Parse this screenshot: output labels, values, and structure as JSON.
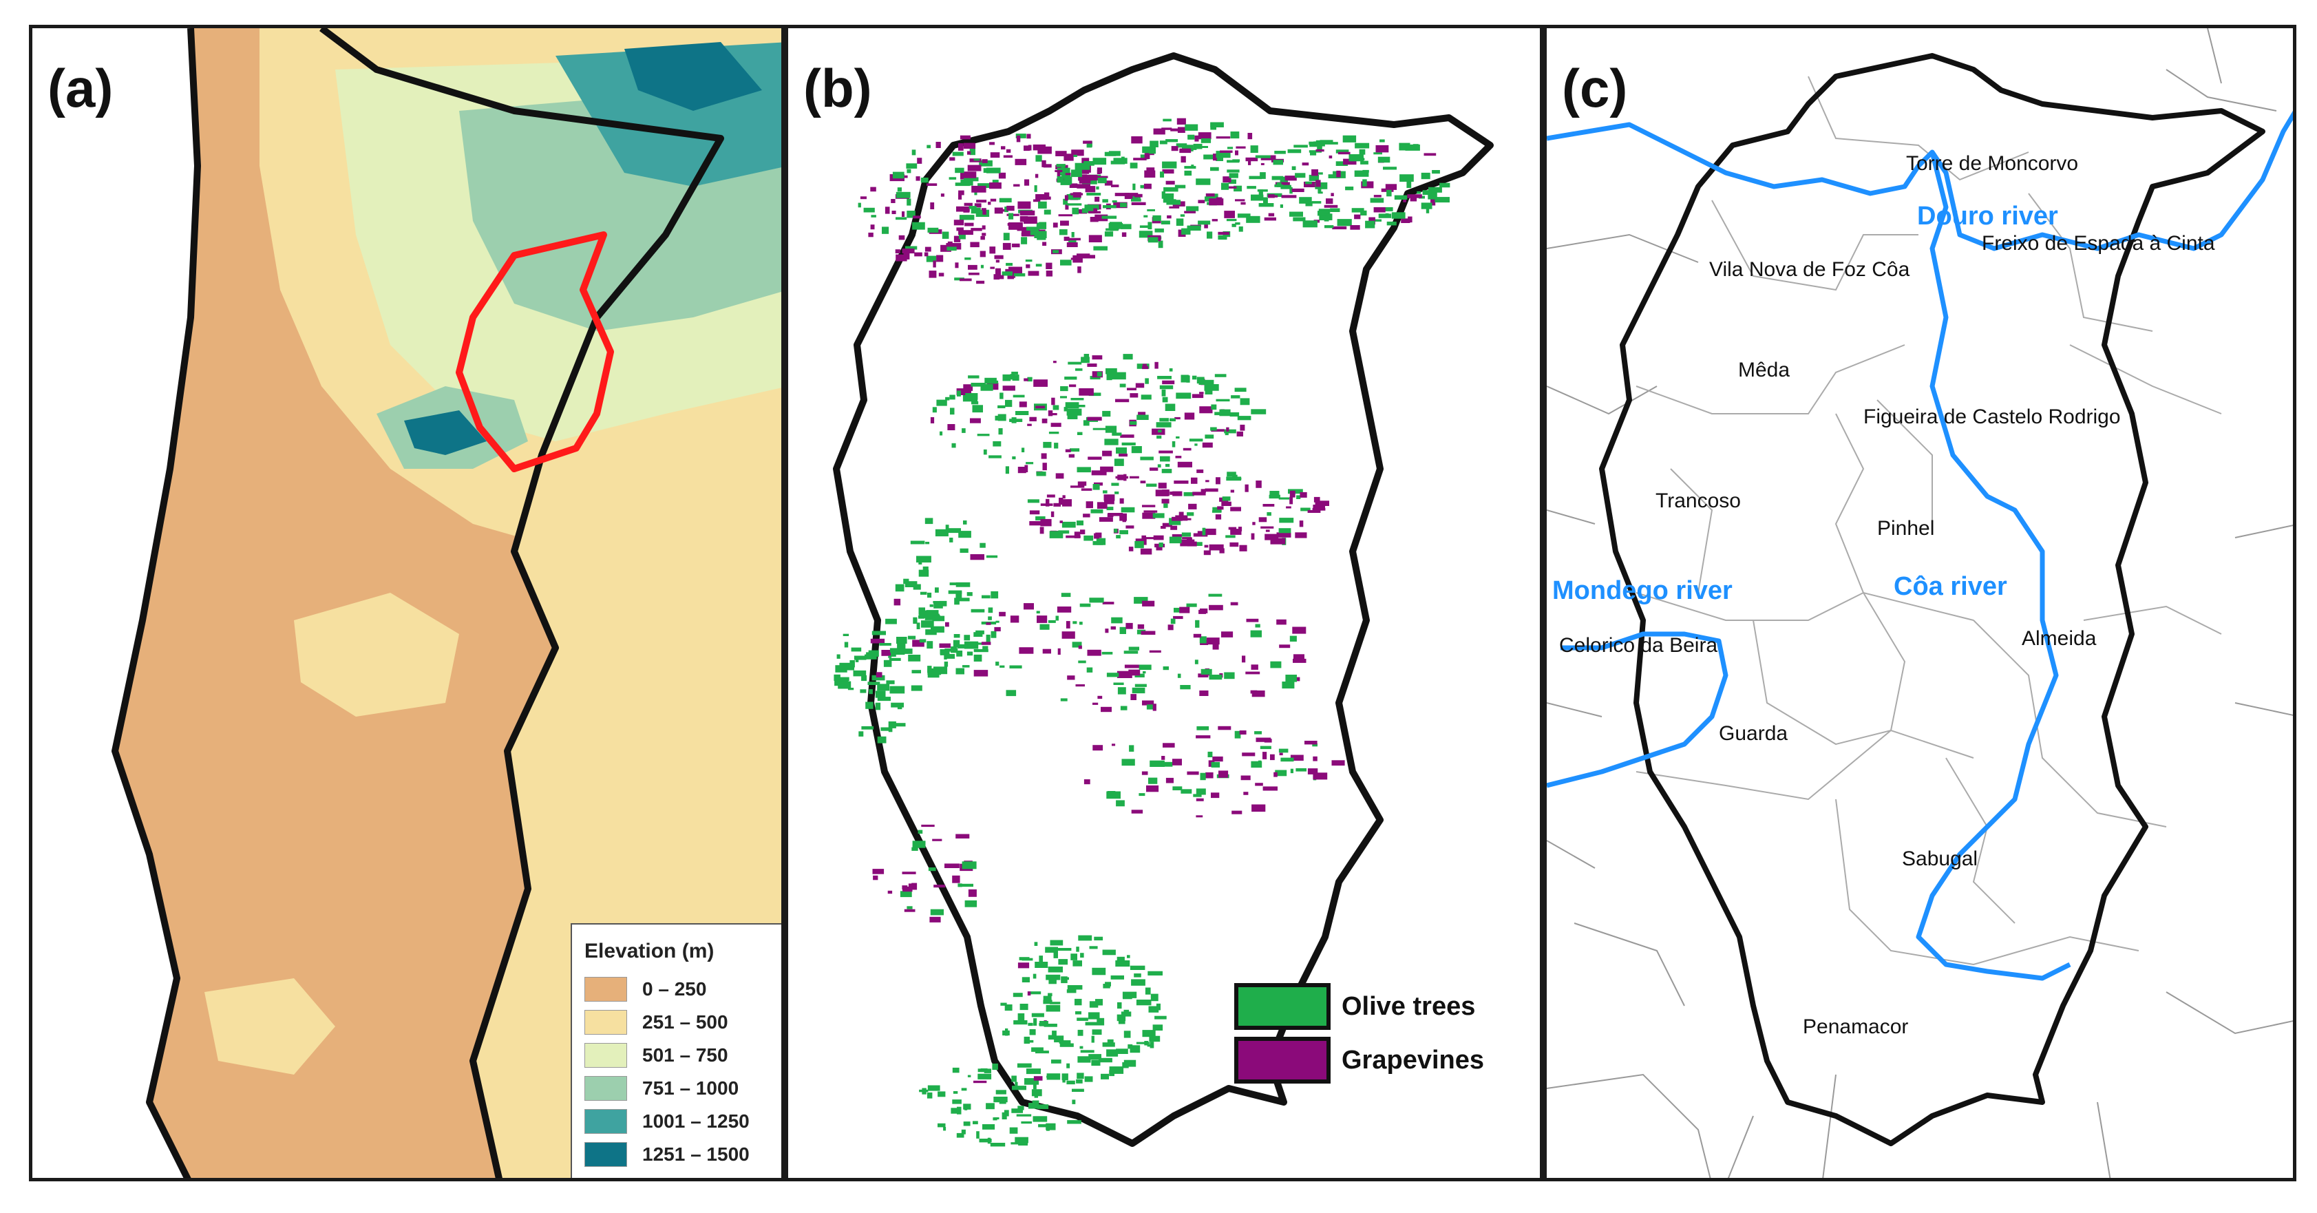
{
  "panels": {
    "a": {
      "letter": "(a)",
      "legend": {
        "title": "Elevation (m)",
        "classes": [
          {
            "label": "0 – 250",
            "color": "#e6b07a"
          },
          {
            "label": "251 – 500",
            "color": "#f6e0a0"
          },
          {
            "label": "501 – 750",
            "color": "#e3f0bb"
          },
          {
            "label": "751 – 1000",
            "color": "#9ccfae"
          },
          {
            "label": "1001  – 1250",
            "color": "#3fa3a0"
          },
          {
            "label": "1251  – 1500",
            "color": "#0e7487"
          }
        ]
      },
      "study_area_color": "#ff1a1a"
    },
    "b": {
      "letter": "(b)",
      "legend": [
        {
          "label": "Olive trees",
          "color": "#1fae4b"
        },
        {
          "label": "Grapevines",
          "color": "#8b0a7a"
        }
      ]
    },
    "c": {
      "letter": "(c)",
      "river_color": "#1e90ff",
      "rivers": {
        "douro": "Douro river",
        "mondego": "Mondego river",
        "coa": "Côa river"
      },
      "municipalities": {
        "torre_de_moncorvo": "Torre de Moncorvo",
        "freixo": "Freixo de Espada à Cinta",
        "vila_nova_de_foz_coa": "Vila Nova de Foz Côa",
        "meda": "Mêda",
        "figueira": "Figueira de Castelo Rodrigo",
        "trancoso": "Trancoso",
        "pinhel": "Pinhel",
        "celorico": "Celorico da Beira",
        "almeida": "Almeida",
        "guarda": "Guarda",
        "sabugal": "Sabugal",
        "penamacor": "Penamacor"
      }
    }
  }
}
